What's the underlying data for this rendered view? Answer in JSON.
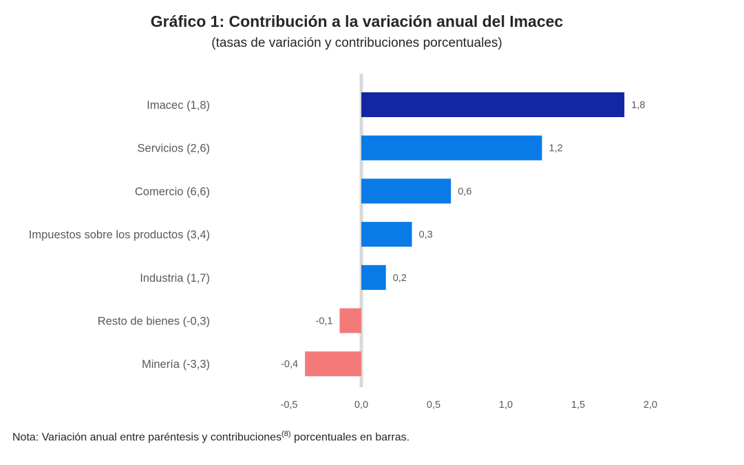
{
  "title": "Gráfico 1: Contribución a la variación anual del Imacec",
  "subtitle": "(tasas de variación y contribuciones porcentuales)",
  "note": {
    "prefix": "Nota: Variación anual entre paréntesis y contribuciones",
    "superscript": "(8)",
    "suffix": " porcentuales en barras."
  },
  "colors": {
    "total": "#1427a3",
    "positive": "#0a7be6",
    "negative": "#f47a7a",
    "zero_line": "#d9d9d9",
    "label": "#595959"
  },
  "chart_data": {
    "type": "bar",
    "orientation": "horizontal",
    "categories": [
      "Imacec (1,8)",
      "Servicios (2,6)",
      "Comercio (6,6)",
      "Impuestos sobre los productos (3,4)",
      "Industria (1,7)",
      "Resto de bienes (-0,3)",
      "Minería (-3,3)"
    ],
    "values": [
      1.82,
      1.25,
      0.62,
      0.35,
      0.17,
      -0.15,
      -0.39
    ],
    "data_labels": [
      "1,8",
      "1,2",
      "0,6",
      "0,3",
      "0,2",
      "-0,1",
      "-0,4"
    ],
    "bar_kind": [
      "total",
      "positive",
      "positive",
      "positive",
      "positive",
      "negative",
      "negative"
    ],
    "xlim": [
      -0.5,
      2.0
    ],
    "xticks": [
      -0.5,
      0.0,
      0.5,
      1.0,
      1.5,
      2.0
    ],
    "xtick_labels": [
      "-0,5",
      "0,0",
      "0,5",
      "1,0",
      "1,5",
      "2,0"
    ],
    "grid": false,
    "legend": "none"
  }
}
